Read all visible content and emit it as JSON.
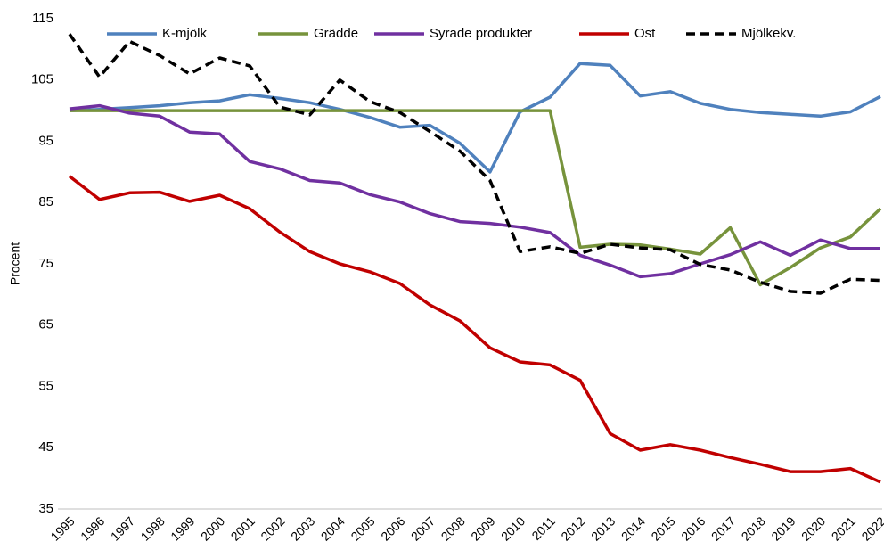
{
  "chart_data": {
    "type": "line",
    "y_label": "Procent",
    "categories": [
      "1995",
      "1996",
      "1997",
      "1998",
      "1999",
      "2000",
      "2001",
      "2002",
      "2003",
      "2004",
      "2005",
      "2006",
      "2007",
      "2008",
      "2009",
      "2010",
      "2011",
      "2012",
      "2013",
      "2014",
      "2015",
      "2016",
      "2017",
      "2018",
      "2019",
      "2020",
      "2021",
      "2022"
    ],
    "series": [
      {
        "name": "K-mjölk",
        "color": "#4f81bd",
        "values": [
          100,
          100.2,
          100.5,
          100.8,
          101.3,
          101.6,
          102.6,
          102,
          101.3,
          100.2,
          98.9,
          97.3,
          97.6,
          94.7,
          90,
          99.8,
          102.2,
          107.7,
          107.4,
          102.4,
          103.1,
          101.2,
          100.2,
          99.7,
          99.4,
          99.1,
          99.8,
          102.3
        ]
      },
      {
        "name": "Grädde",
        "color": "#77933c",
        "values": [
          100,
          100,
          100,
          100,
          100,
          100,
          100,
          100,
          100,
          100,
          100,
          100,
          100,
          100,
          100,
          100,
          100,
          77.7,
          78.2,
          78.1,
          77.4,
          76.6,
          80.9,
          71.6,
          74.4,
          77.6,
          79.4,
          84
        ]
      },
      {
        "name": "Syrade produkter",
        "color": "#7030a0",
        "values": [
          100.3,
          100.8,
          99.6,
          99.1,
          96.5,
          96.2,
          91.7,
          90.5,
          88.6,
          88.2,
          86.3,
          85.1,
          83.2,
          81.9,
          81.6,
          81,
          80.1,
          76.4,
          74.8,
          72.9,
          73.4,
          75,
          76.5,
          78.6,
          76.4,
          78.9,
          77.5,
          77.5
        ]
      },
      {
        "name": "Ost",
        "color": "#c00000",
        "values": [
          89.3,
          85.5,
          86.6,
          86.7,
          85.2,
          86.2,
          84,
          80.2,
          77,
          75,
          73.7,
          71.8,
          68.3,
          65.7,
          61.3,
          59,
          58.5,
          56,
          47.3,
          44.6,
          45.5,
          44.6,
          43.4,
          42.3,
          41.1,
          41.1,
          41.6,
          39.4
        ]
      },
      {
        "name": "Mjölkekv.",
        "color": "#000000",
        "dashed": true,
        "values": [
          112.5,
          105.5,
          111.3,
          109,
          106,
          108.6,
          107.3,
          100.6,
          99.3,
          105,
          101.5,
          99.7,
          96.6,
          93.4,
          88.6,
          77,
          77.8,
          76.7,
          78.2,
          77.6,
          77.3,
          74.9,
          74,
          72,
          70.5,
          70.2,
          72.5,
          72.3
        ]
      }
    ],
    "ylim": [
      35,
      115
    ],
    "yticks": [
      35,
      45,
      55,
      65,
      75,
      85,
      95,
      105,
      115
    ],
    "legend": "top"
  }
}
